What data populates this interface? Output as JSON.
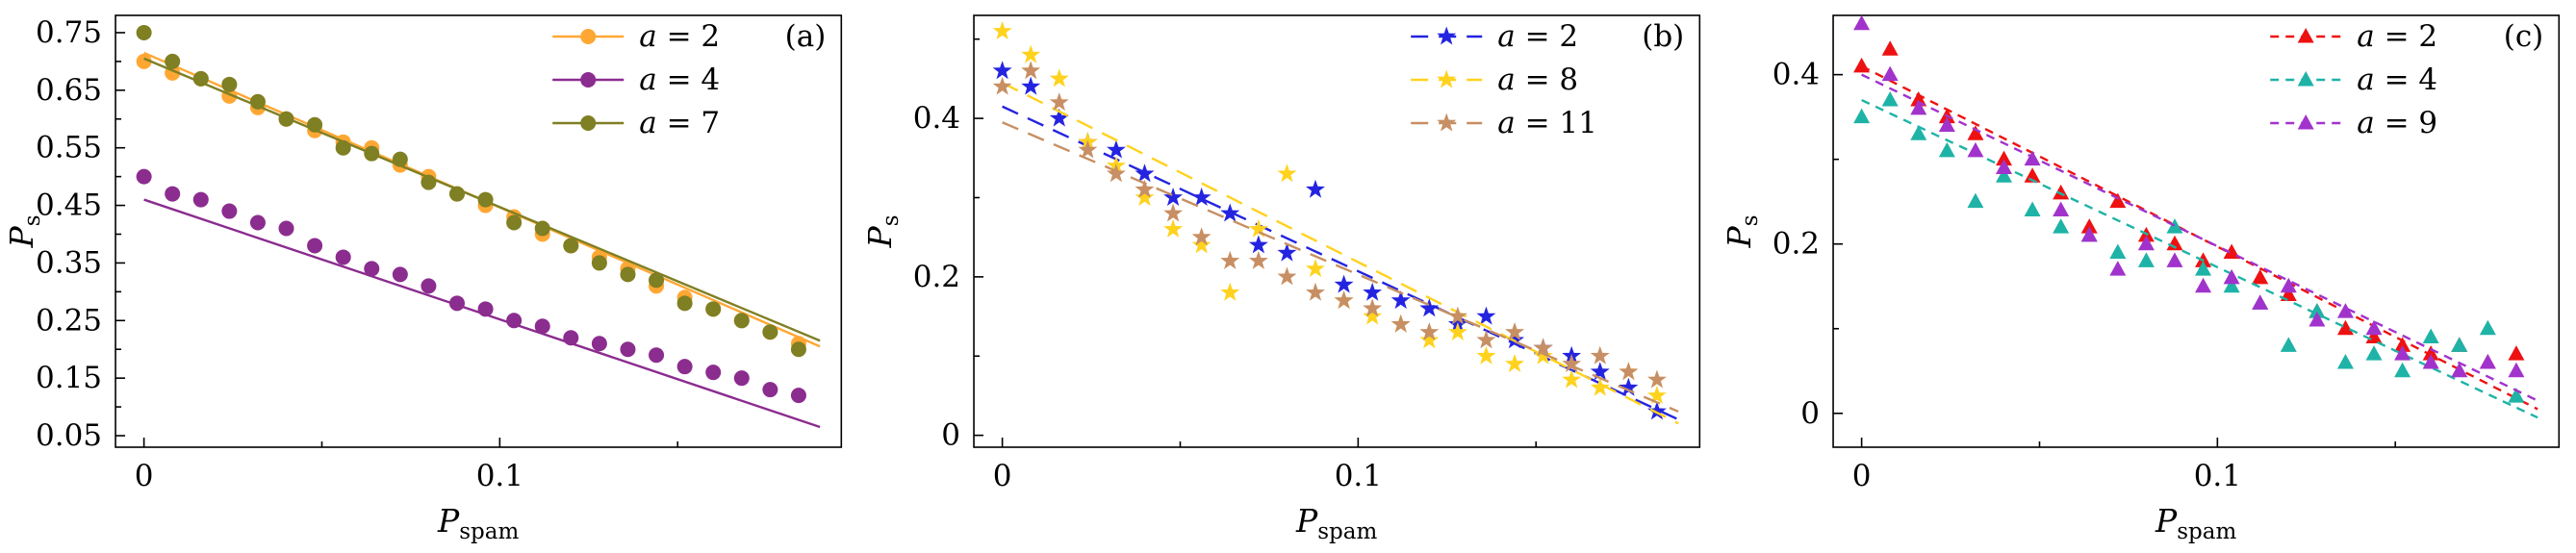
{
  "figure": {
    "background": "#ffffff",
    "description": "Three scatter panels (a),(b),(c) of P_s versus P_spam with linear fits for different a values"
  },
  "chart_data": [
    {
      "type": "scatter",
      "panel_label": "(a)",
      "xlabel": {
        "main": "P",
        "sub": "spam"
      },
      "ylabel": {
        "main": "P",
        "sub": "s"
      },
      "xlim": [
        -0.008,
        0.196
      ],
      "ylim": [
        0.03,
        0.78
      ],
      "xticks": {
        "values": [
          0,
          0.1
        ],
        "labels": [
          "0",
          "0.1"
        ],
        "minor": [
          0.05,
          0.15
        ]
      },
      "yticks": {
        "values": [
          0.05,
          0.15,
          0.25,
          0.35,
          0.45,
          0.55,
          0.65,
          0.75
        ],
        "labels": [
          "0.05",
          "0.15",
          "0.25",
          "0.35",
          "0.45",
          "0.55",
          "0.65",
          "0.75"
        ],
        "minor": [
          0.1,
          0.2,
          0.3,
          0.4,
          0.5,
          0.6,
          0.7
        ]
      },
      "legend_position": "top-right",
      "grid": false,
      "x": [
        0,
        0.008,
        0.016,
        0.024,
        0.032,
        0.04,
        0.048,
        0.056,
        0.064,
        0.072,
        0.08,
        0.088,
        0.096,
        0.104,
        0.112,
        0.12,
        0.128,
        0.136,
        0.144,
        0.152,
        0.16,
        0.168,
        0.176,
        0.184
      ],
      "series": [
        {
          "name": "a = 2",
          "color": "#ffa733",
          "marker": "circle",
          "line": "solid",
          "y": [
            0.7,
            0.68,
            0.67,
            0.64,
            0.62,
            0.6,
            0.58,
            0.56,
            0.55,
            0.52,
            0.5,
            0.47,
            0.45,
            0.43,
            0.4,
            0.38,
            0.36,
            0.34,
            0.31,
            0.29,
            0.27,
            0.25,
            0.23,
            0.21
          ],
          "fit": {
            "x": [
              0,
              0.19
            ],
            "y": [
              0.715,
              0.205
            ]
          }
        },
        {
          "name": "a = 4",
          "color": "#8b2c8f",
          "marker": "circle",
          "line": "solid",
          "y": [
            0.5,
            0.47,
            0.46,
            0.44,
            0.42,
            0.41,
            0.38,
            0.36,
            0.34,
            0.33,
            0.31,
            0.28,
            0.27,
            0.25,
            0.24,
            0.22,
            0.21,
            0.2,
            0.19,
            0.17,
            0.16,
            0.15,
            0.13,
            0.12
          ],
          "fit": {
            "x": [
              0,
              0.19
            ],
            "y": [
              0.46,
              0.065
            ]
          }
        },
        {
          "name": "a = 7",
          "color": "#7f7f23",
          "marker": "circle",
          "line": "solid",
          "y": [
            0.75,
            0.7,
            0.67,
            0.66,
            0.63,
            0.6,
            0.59,
            0.55,
            0.54,
            0.53,
            0.49,
            0.47,
            0.46,
            0.42,
            0.41,
            0.38,
            0.35,
            0.33,
            0.32,
            0.28,
            0.27,
            0.25,
            0.23,
            0.2
          ],
          "fit": {
            "x": [
              0,
              0.19
            ],
            "y": [
              0.705,
              0.215
            ]
          }
        }
      ]
    },
    {
      "type": "scatter",
      "panel_label": "(b)",
      "xlabel": {
        "main": "P",
        "sub": "spam"
      },
      "ylabel": {
        "main": "P",
        "sub": "s"
      },
      "xlim": [
        -0.008,
        0.196
      ],
      "ylim": [
        -0.015,
        0.53
      ],
      "xticks": {
        "values": [
          0,
          0.1
        ],
        "labels": [
          "0",
          "0.1"
        ],
        "minor": [
          0.05,
          0.15
        ]
      },
      "yticks": {
        "values": [
          0,
          0.2,
          0.4
        ],
        "labels": [
          "0",
          "0.2",
          "0.4"
        ],
        "minor": [
          0.1,
          0.3,
          0.5
        ]
      },
      "legend_position": "top-right",
      "grid": false,
      "x": [
        0,
        0.008,
        0.016,
        0.024,
        0.032,
        0.04,
        0.048,
        0.056,
        0.064,
        0.072,
        0.08,
        0.088,
        0.096,
        0.104,
        0.112,
        0.12,
        0.128,
        0.136,
        0.144,
        0.152,
        0.16,
        0.168,
        0.176,
        0.184
      ],
      "series": [
        {
          "name": "a = 2",
          "color": "#2424e0",
          "marker": "star",
          "line": "dashed",
          "dash": "18 11",
          "y": [
            0.46,
            0.44,
            0.4,
            0.37,
            0.36,
            0.33,
            0.3,
            0.3,
            0.28,
            0.24,
            0.23,
            0.31,
            0.19,
            0.18,
            0.17,
            0.16,
            0.14,
            0.15,
            0.12,
            0.11,
            0.1,
            0.08,
            0.06,
            0.03
          ],
          "fit": {
            "x": [
              0,
              0.19
            ],
            "y": [
              0.415,
              0.02
            ]
          }
        },
        {
          "name": "a = 8",
          "color": "#ffd21e",
          "marker": "star",
          "line": "dashed",
          "dash": "18 11",
          "y": [
            0.51,
            0.48,
            0.45,
            0.37,
            0.34,
            0.3,
            0.26,
            0.24,
            0.18,
            0.26,
            0.33,
            0.21,
            0.17,
            0.15,
            0.14,
            0.12,
            0.13,
            0.1,
            0.09,
            0.1,
            0.07,
            0.06,
            0.08,
            0.05
          ],
          "fit": {
            "x": [
              0,
              0.19
            ],
            "y": [
              0.445,
              0.015
            ]
          }
        },
        {
          "name": "a = 11",
          "color": "#c78f63",
          "marker": "star",
          "line": "dashed",
          "dash": "18 11",
          "y": [
            0.44,
            0.46,
            0.42,
            0.36,
            0.33,
            0.31,
            0.28,
            0.25,
            0.22,
            0.22,
            0.2,
            0.18,
            0.17,
            0.16,
            0.14,
            0.13,
            0.15,
            0.12,
            0.13,
            0.11,
            0.09,
            0.1,
            0.08,
            0.07
          ],
          "fit": {
            "x": [
              0,
              0.19
            ],
            "y": [
              0.395,
              0.03
            ]
          }
        }
      ]
    },
    {
      "type": "scatter",
      "panel_label": "(c)",
      "xlabel": {
        "main": "P",
        "sub": "spam"
      },
      "ylabel": {
        "main": "P",
        "sub": "s"
      },
      "xlim": [
        -0.008,
        0.196
      ],
      "ylim": [
        -0.04,
        0.47
      ],
      "xticks": {
        "values": [
          0,
          0.1
        ],
        "labels": [
          "0",
          "0.1"
        ],
        "minor": [
          0.05,
          0.15
        ]
      },
      "yticks": {
        "values": [
          0,
          0.2,
          0.4
        ],
        "labels": [
          "0",
          "0.2",
          "0.4"
        ],
        "minor": [
          0.1,
          0.3
        ]
      },
      "legend_position": "top-right",
      "grid": false,
      "x": [
        0,
        0.008,
        0.016,
        0.024,
        0.032,
        0.04,
        0.048,
        0.056,
        0.064,
        0.072,
        0.08,
        0.088,
        0.096,
        0.104,
        0.112,
        0.12,
        0.128,
        0.136,
        0.144,
        0.152,
        0.16,
        0.168,
        0.176,
        0.184
      ],
      "series": [
        {
          "name": "a = 2",
          "color": "#ee1111",
          "marker": "triangle",
          "line": "dashed",
          "dash": "9 7",
          "y": [
            0.41,
            0.43,
            0.37,
            0.35,
            0.33,
            0.3,
            0.28,
            0.26,
            0.22,
            0.25,
            0.21,
            0.2,
            0.18,
            0.19,
            0.16,
            0.14,
            0.12,
            0.1,
            0.09,
            0.08,
            0.07,
            0.08,
            0.06,
            0.07
          ],
          "fit": {
            "x": [
              0,
              0.19
            ],
            "y": [
              0.41,
              0.005
            ]
          }
        },
        {
          "name": "a = 4",
          "color": "#1fb3a7",
          "marker": "triangle",
          "line": "dashed",
          "dash": "9 7",
          "y": [
            0.35,
            0.37,
            0.33,
            0.31,
            0.25,
            0.28,
            0.24,
            0.22,
            0.21,
            0.19,
            0.18,
            0.22,
            0.17,
            0.15,
            0.13,
            0.08,
            0.12,
            0.06,
            0.07,
            0.05,
            0.09,
            0.08,
            0.1,
            0.02
          ],
          "fit": {
            "x": [
              0,
              0.19
            ],
            "y": [
              0.37,
              -0.005
            ]
          }
        },
        {
          "name": "a = 9",
          "color": "#a133cc",
          "marker": "triangle",
          "line": "dashed",
          "dash": "9 7",
          "y": [
            0.46,
            0.4,
            0.36,
            0.34,
            0.31,
            0.29,
            0.3,
            0.24,
            0.21,
            0.17,
            0.2,
            0.18,
            0.15,
            0.16,
            0.13,
            0.15,
            0.11,
            0.12,
            0.1,
            0.07,
            0.06,
            0.05,
            0.06,
            0.05
          ],
          "fit": {
            "x": [
              0,
              0.19
            ],
            "y": [
              0.4,
              0.015
            ]
          }
        }
      ]
    }
  ]
}
